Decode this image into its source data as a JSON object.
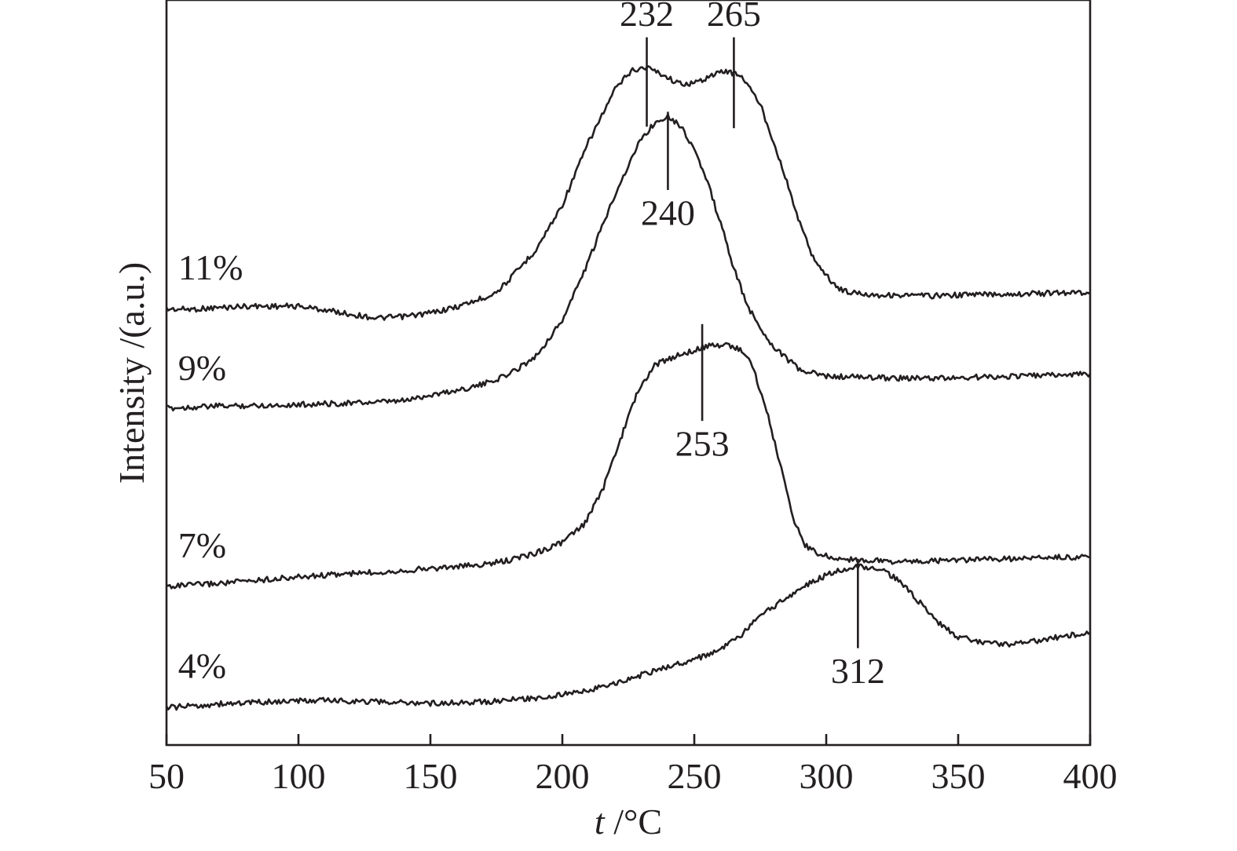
{
  "chart_data": {
    "type": "line",
    "xlabel_italic": "t",
    "xlabel_rest": " /°C",
    "ylabel": "Intensity /(a.u.)",
    "xlim": [
      50,
      400
    ],
    "ylim": [
      0,
      1
    ],
    "xticks": [
      50,
      100,
      150,
      200,
      250,
      300,
      350,
      400
    ],
    "legend": "none",
    "grid": false,
    "series": [
      {
        "name": "11%",
        "points": [
          [
            50,
            0.585
          ],
          [
            60,
            0.585
          ],
          [
            80,
            0.589
          ],
          [
            100,
            0.589
          ],
          [
            110,
            0.584
          ],
          [
            120,
            0.578
          ],
          [
            130,
            0.573
          ],
          [
            140,
            0.575
          ],
          [
            150,
            0.58
          ],
          [
            160,
            0.588
          ],
          [
            170,
            0.6
          ],
          [
            175,
            0.608
          ],
          [
            180,
            0.625
          ],
          [
            190,
            0.665
          ],
          [
            200,
            0.725
          ],
          [
            210,
            0.81
          ],
          [
            220,
            0.88
          ],
          [
            226,
            0.905
          ],
          [
            232,
            0.91
          ],
          [
            238,
            0.9
          ],
          [
            244,
            0.888
          ],
          [
            250,
            0.888
          ],
          [
            256,
            0.898
          ],
          [
            262,
            0.905
          ],
          [
            268,
            0.898
          ],
          [
            275,
            0.86
          ],
          [
            282,
            0.79
          ],
          [
            290,
            0.7
          ],
          [
            295,
            0.655
          ],
          [
            300,
            0.63
          ],
          [
            305,
            0.612
          ],
          [
            310,
            0.607
          ],
          [
            320,
            0.604
          ],
          [
            340,
            0.603
          ],
          [
            360,
            0.605
          ],
          [
            380,
            0.606
          ],
          [
            400,
            0.608
          ]
        ]
      },
      {
        "name": "9%",
        "points": [
          [
            50,
            0.452
          ],
          [
            70,
            0.455
          ],
          [
            90,
            0.456
          ],
          [
            110,
            0.458
          ],
          [
            130,
            0.46
          ],
          [
            140,
            0.462
          ],
          [
            150,
            0.47
          ],
          [
            160,
            0.476
          ],
          [
            170,
            0.484
          ],
          [
            180,
            0.498
          ],
          [
            190,
            0.522
          ],
          [
            200,
            0.57
          ],
          [
            210,
            0.65
          ],
          [
            220,
            0.74
          ],
          [
            230,
            0.815
          ],
          [
            236,
            0.838
          ],
          [
            240,
            0.845
          ],
          [
            245,
            0.83
          ],
          [
            250,
            0.8
          ],
          [
            255,
            0.755
          ],
          [
            260,
            0.7
          ],
          [
            265,
            0.64
          ],
          [
            270,
            0.59
          ],
          [
            275,
            0.56
          ],
          [
            280,
            0.535
          ],
          [
            290,
            0.503
          ],
          [
            300,
            0.495
          ],
          [
            320,
            0.493
          ],
          [
            340,
            0.492
          ],
          [
            360,
            0.494
          ],
          [
            380,
            0.496
          ],
          [
            400,
            0.498
          ]
        ]
      },
      {
        "name": "7%",
        "points": [
          [
            50,
            0.213
          ],
          [
            70,
            0.217
          ],
          [
            90,
            0.223
          ],
          [
            110,
            0.228
          ],
          [
            130,
            0.232
          ],
          [
            150,
            0.237
          ],
          [
            170,
            0.242
          ],
          [
            180,
            0.248
          ],
          [
            190,
            0.258
          ],
          [
            200,
            0.272
          ],
          [
            208,
            0.295
          ],
          [
            215,
            0.34
          ],
          [
            222,
            0.41
          ],
          [
            228,
            0.47
          ],
          [
            235,
            0.51
          ],
          [
            245,
            0.525
          ],
          [
            255,
            0.535
          ],
          [
            262,
            0.538
          ],
          [
            268,
            0.53
          ],
          [
            272,
            0.51
          ],
          [
            278,
            0.44
          ],
          [
            283,
            0.37
          ],
          [
            288,
            0.3
          ],
          [
            292,
            0.268
          ],
          [
            298,
            0.255
          ],
          [
            305,
            0.25
          ],
          [
            315,
            0.248
          ],
          [
            330,
            0.246
          ],
          [
            350,
            0.248
          ],
          [
            370,
            0.25
          ],
          [
            385,
            0.252
          ],
          [
            400,
            0.252
          ]
        ]
      },
      {
        "name": "4%",
        "points": [
          [
            50,
            0.05
          ],
          [
            70,
            0.055
          ],
          [
            90,
            0.058
          ],
          [
            110,
            0.06
          ],
          [
            130,
            0.058
          ],
          [
            150,
            0.056
          ],
          [
            170,
            0.058
          ],
          [
            190,
            0.063
          ],
          [
            205,
            0.07
          ],
          [
            220,
            0.082
          ],
          [
            235,
            0.1
          ],
          [
            250,
            0.115
          ],
          [
            260,
            0.128
          ],
          [
            268,
            0.148
          ],
          [
            275,
            0.173
          ],
          [
            285,
            0.198
          ],
          [
            295,
            0.22
          ],
          [
            305,
            0.235
          ],
          [
            312,
            0.24
          ],
          [
            320,
            0.237
          ],
          [
            328,
            0.22
          ],
          [
            335,
            0.193
          ],
          [
            342,
            0.165
          ],
          [
            350,
            0.145
          ],
          [
            360,
            0.137
          ],
          [
            370,
            0.135
          ],
          [
            380,
            0.14
          ],
          [
            390,
            0.146
          ],
          [
            400,
            0.151
          ]
        ]
      }
    ],
    "labels_positioned": [
      {
        "text": "11%",
        "x": 55,
        "y": 0.625
      },
      {
        "text": "9%",
        "x": 55,
        "y": 0.49
      },
      {
        "text": "7%",
        "x": 55,
        "y": 0.252
      },
      {
        "text": "4%",
        "x": 55,
        "y": 0.09
      }
    ],
    "peak_annotations": [
      {
        "label": "232",
        "x": 232,
        "y_from": 0.83,
        "y_to": 0.95,
        "label_y": 0.965,
        "label_side": "top"
      },
      {
        "label": "265",
        "x": 265,
        "y_from": 0.828,
        "y_to": 0.95,
        "label_y": 0.965,
        "label_side": "top"
      },
      {
        "label": "240",
        "x": 240,
        "y_from": 0.745,
        "y_to": 0.85,
        "label_y": 0.715,
        "label_side": "bottom"
      },
      {
        "label": "253",
        "x": 253,
        "y_from": 0.435,
        "y_to": 0.565,
        "label_y": 0.405,
        "label_side": "bottom"
      },
      {
        "label": "312",
        "x": 312,
        "y_from": 0.13,
        "y_to": 0.25,
        "label_y": 0.1,
        "label_side": "bottom"
      }
    ]
  }
}
